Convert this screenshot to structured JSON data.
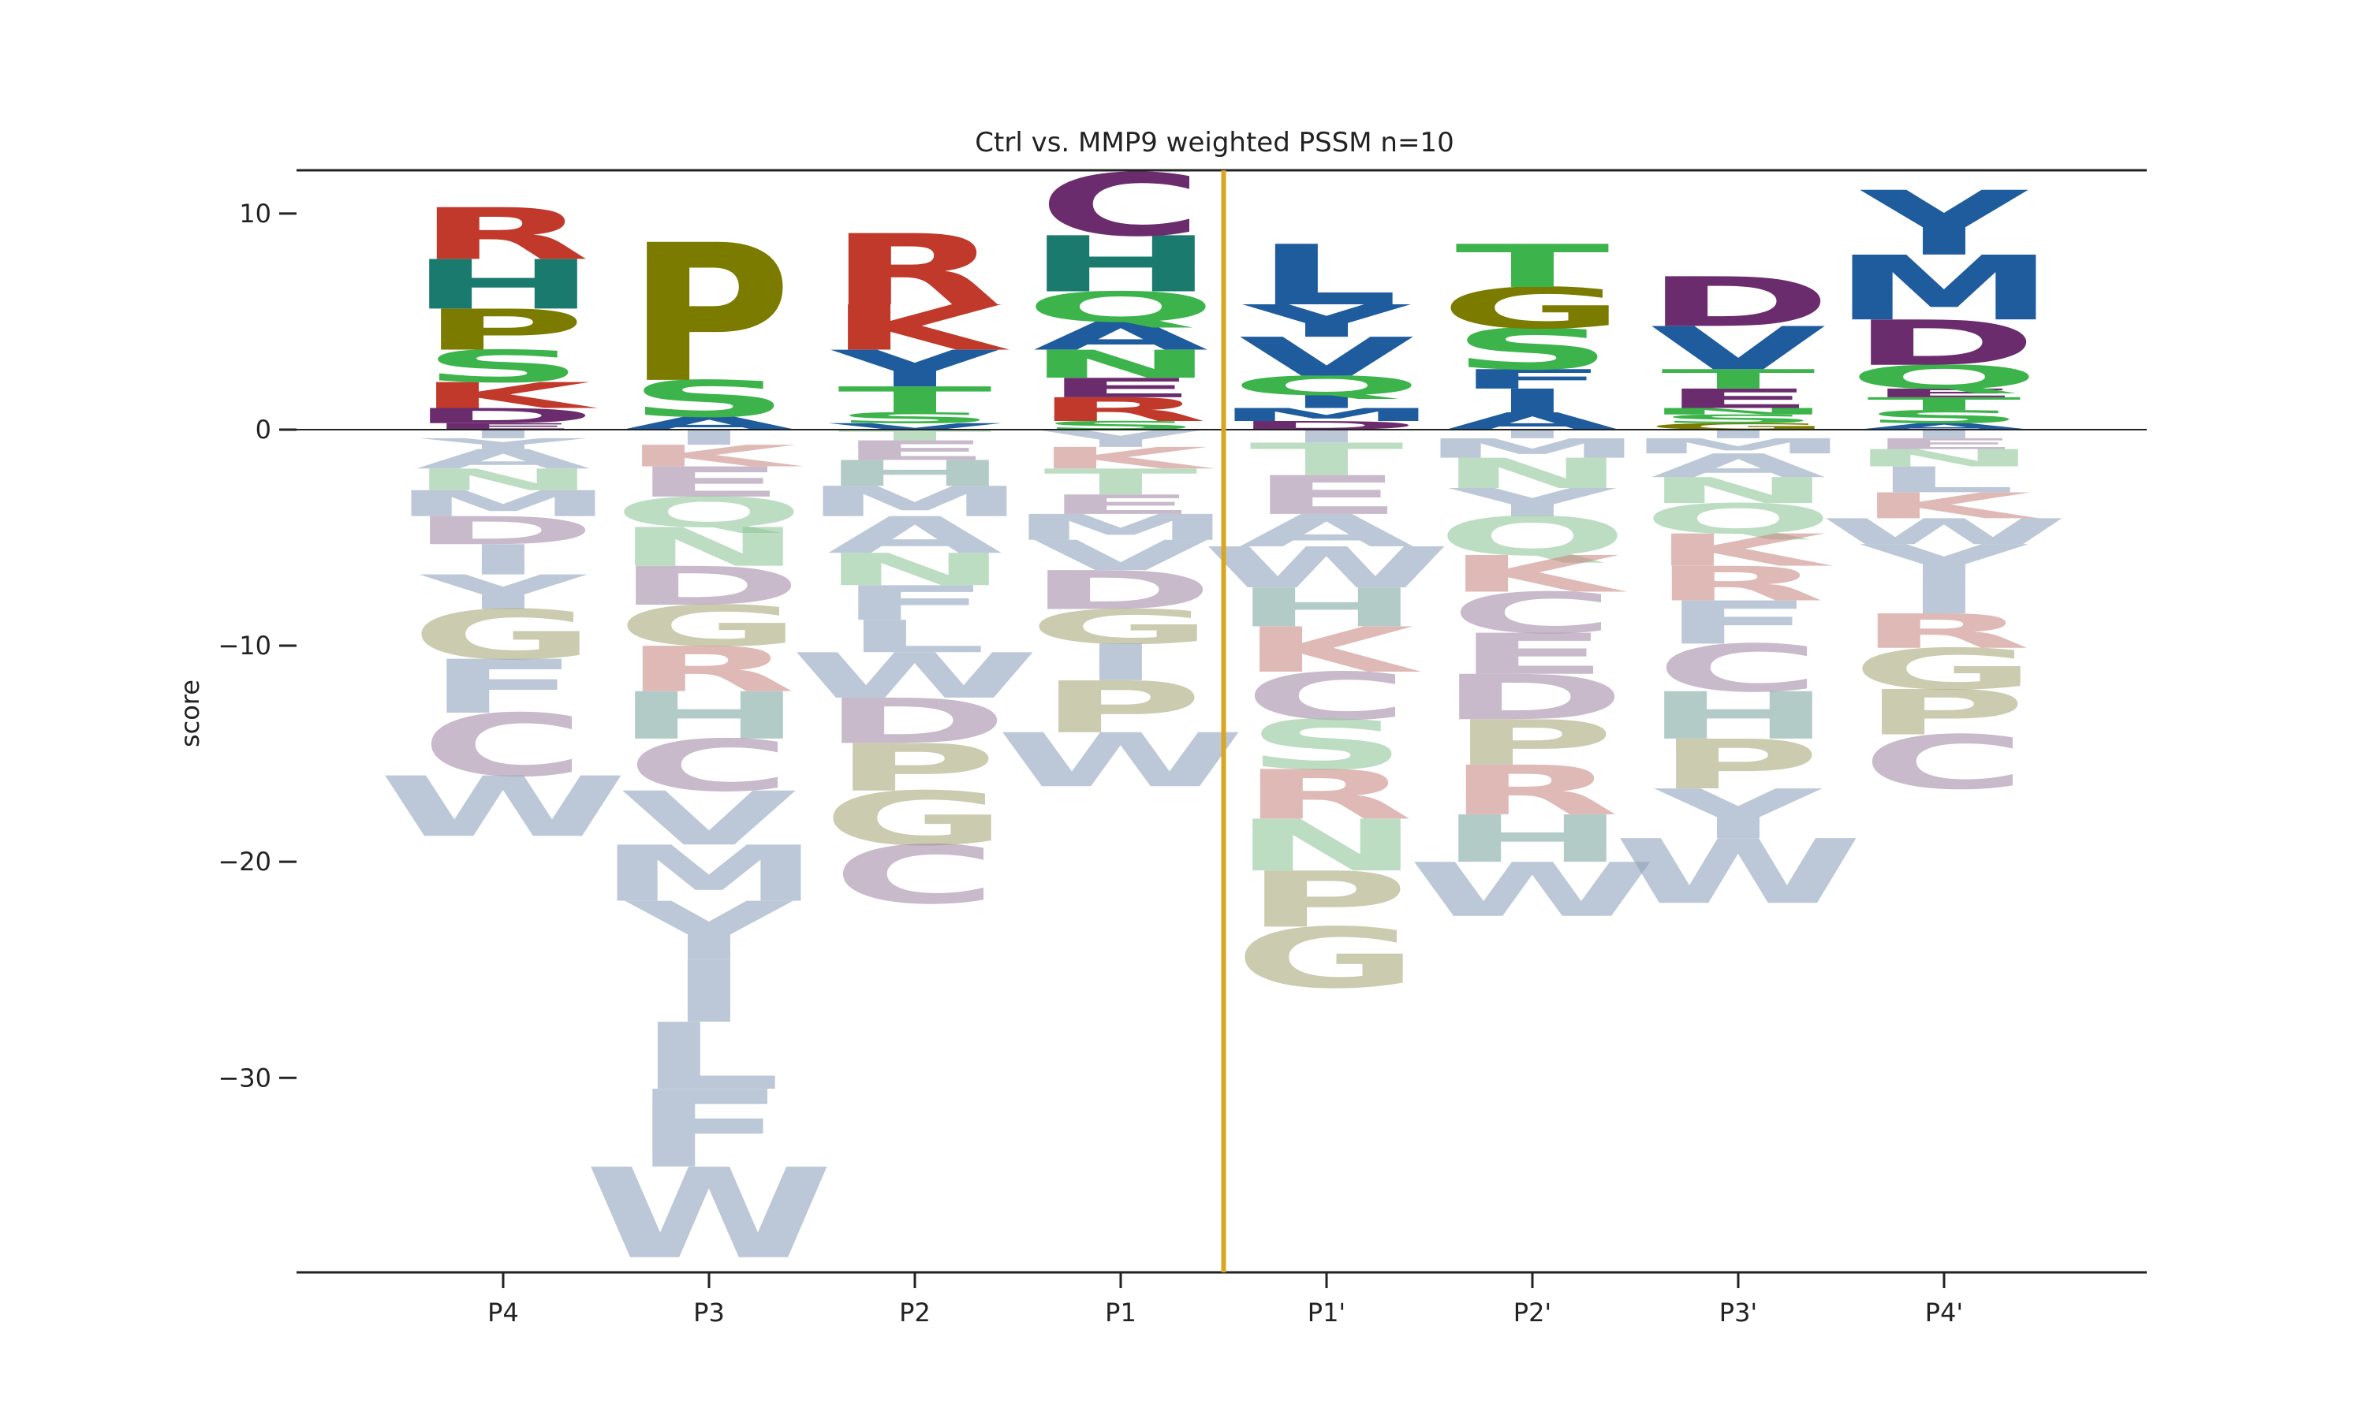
{
  "chart_data": {
    "type": "sequence-logo",
    "title": "Ctrl vs. MMP9 weighted PSSM n=10",
    "xlabel": "",
    "ylabel": "score",
    "ylim": [
      -39,
      12
    ],
    "yticks": [
      10,
      0,
      -10,
      -20,
      -30
    ],
    "ytick_labels": [
      "10",
      "0",
      "−10",
      "−20",
      "−30"
    ],
    "positions": [
      "P4",
      "P3",
      "P2",
      "P1",
      "P1'",
      "P2'",
      "P3'",
      "P4'"
    ],
    "cleavage_site_between": [
      "P1",
      "P1'"
    ],
    "colors": {
      "cleavage_line": "#DAA520",
      "R": "#C0392B",
      "K": "#C0392B",
      "H": "#1A7A6E",
      "C": "#6B2C6E",
      "D": "#6B2C6E",
      "E": "#6B2C6E",
      "P": "#7B7B00",
      "G": "#7B7B00",
      "S": "#3CB44B",
      "T": "#3CB44B",
      "Q": "#3CB44B",
      "N": "#3CB44B",
      "Y": "#1F5C9E",
      "V": "#1F5C9E",
      "L": "#1F5C9E",
      "M": "#1F5C9E",
      "F": "#1F5C9E",
      "W": "#1F5C9E",
      "I": "#1F5C9E",
      "A": "#1F5C9E"
    },
    "stacks": [
      {
        "position": "P4",
        "positive": [
          {
            "letter": "E",
            "value": 0.3
          },
          {
            "letter": "D",
            "value": 0.7
          },
          {
            "letter": "K",
            "value": 1.2
          },
          {
            "letter": "S",
            "value": 1.5
          },
          {
            "letter": "P",
            "value": 1.9
          },
          {
            "letter": "H",
            "value": 2.3
          },
          {
            "letter": "R",
            "value": 2.4
          }
        ],
        "negative": [
          {
            "letter": "I",
            "value": -0.4
          },
          {
            "letter": "Y",
            "value": -0.5
          },
          {
            "letter": "A",
            "value": -0.9
          },
          {
            "letter": "N",
            "value": -1.0
          },
          {
            "letter": "M",
            "value": -1.2
          },
          {
            "letter": "D",
            "value": -1.3
          },
          {
            "letter": "I",
            "value": -1.4
          },
          {
            "letter": "Y",
            "value": -1.6
          },
          {
            "letter": "G",
            "value": -2.3
          },
          {
            "letter": "F",
            "value": -2.5
          },
          {
            "letter": "C",
            "value": -2.9
          },
          {
            "letter": "W",
            "value": -2.8
          }
        ]
      },
      {
        "position": "P3",
        "positive": [
          {
            "letter": "A",
            "value": 0.6
          },
          {
            "letter": "S",
            "value": 1.7
          },
          {
            "letter": "P",
            "value": 6.4
          }
        ],
        "negative": [
          {
            "letter": "I",
            "value": -0.7
          },
          {
            "letter": "K",
            "value": -1.0
          },
          {
            "letter": "E",
            "value": -1.4
          },
          {
            "letter": "Q",
            "value": -1.4
          },
          {
            "letter": "N",
            "value": -1.8
          },
          {
            "letter": "D",
            "value": -1.8
          },
          {
            "letter": "G",
            "value": -1.9
          },
          {
            "letter": "R",
            "value": -2.1
          },
          {
            "letter": "H",
            "value": -2.2
          },
          {
            "letter": "C",
            "value": -2.4
          },
          {
            "letter": "V",
            "value": -2.5
          },
          {
            "letter": "M",
            "value": -2.6
          },
          {
            "letter": "Y",
            "value": -2.7
          },
          {
            "letter": "I",
            "value": -2.9
          },
          {
            "letter": "L",
            "value": -3.1
          },
          {
            "letter": "F",
            "value": -3.6
          },
          {
            "letter": "W",
            "value": -4.2
          }
        ]
      },
      {
        "position": "P2",
        "positive": [
          {
            "letter": "V",
            "value": 0.3
          },
          {
            "letter": "S",
            "value": 0.5
          },
          {
            "letter": "T",
            "value": 1.2
          },
          {
            "letter": "Y",
            "value": 1.7
          },
          {
            "letter": "K",
            "value": 2.1
          },
          {
            "letter": "R",
            "value": 3.3
          }
        ],
        "negative": [
          {
            "letter": "T",
            "value": -0.5
          },
          {
            "letter": "E",
            "value": -0.9
          },
          {
            "letter": "H",
            "value": -1.2
          },
          {
            "letter": "M",
            "value": -1.4
          },
          {
            "letter": "A",
            "value": -1.7
          },
          {
            "letter": "N",
            "value": -1.5
          },
          {
            "letter": "F",
            "value": -1.6
          },
          {
            "letter": "L",
            "value": -1.5
          },
          {
            "letter": "W",
            "value": -2.1
          },
          {
            "letter": "D",
            "value": -2.1
          },
          {
            "letter": "P",
            "value": -2.2
          },
          {
            "letter": "G",
            "value": -2.5
          },
          {
            "letter": "C",
            "value": -2.7
          }
        ]
      },
      {
        "position": "P1",
        "positive": [
          {
            "letter": "S",
            "value": 0.4
          },
          {
            "letter": "R",
            "value": 1.1
          },
          {
            "letter": "E",
            "value": 0.9
          },
          {
            "letter": "N",
            "value": 1.3
          },
          {
            "letter": "A",
            "value": 1.3
          },
          {
            "letter": "Q",
            "value": 1.4
          },
          {
            "letter": "H",
            "value": 2.6
          },
          {
            "letter": "C",
            "value": 2.9
          }
        ],
        "negative": [
          {
            "letter": "Y",
            "value": -0.8
          },
          {
            "letter": "K",
            "value": -1.0
          },
          {
            "letter": "T",
            "value": -1.2
          },
          {
            "letter": "E",
            "value": -0.9
          },
          {
            "letter": "M",
            "value": -1.2
          },
          {
            "letter": "V",
            "value": -1.4
          },
          {
            "letter": "D",
            "value": -1.8
          },
          {
            "letter": "G",
            "value": -1.6
          },
          {
            "letter": "I",
            "value": -1.7
          },
          {
            "letter": "P",
            "value": -2.4
          },
          {
            "letter": "W",
            "value": -2.5
          }
        ]
      },
      {
        "position": "P1'",
        "positive": [
          {
            "letter": "D",
            "value": 0.4
          },
          {
            "letter": "M",
            "value": 0.6
          },
          {
            "letter": "I",
            "value": 0.6
          },
          {
            "letter": "Q",
            "value": 0.9
          },
          {
            "letter": "V",
            "value": 1.8
          },
          {
            "letter": "Y",
            "value": 1.5
          },
          {
            "letter": "L",
            "value": 2.8
          }
        ],
        "negative": [
          {
            "letter": "I",
            "value": -0.6
          },
          {
            "letter": "T",
            "value": -1.5
          },
          {
            "letter": "E",
            "value": -1.8
          },
          {
            "letter": "A",
            "value": -1.5
          },
          {
            "letter": "W",
            "value": -1.9
          },
          {
            "letter": "H",
            "value": -1.8
          },
          {
            "letter": "K",
            "value": -2.1
          },
          {
            "letter": "C",
            "value": -2.2
          },
          {
            "letter": "S",
            "value": -2.3
          },
          {
            "letter": "R",
            "value": -2.3
          },
          {
            "letter": "N",
            "value": -2.4
          },
          {
            "letter": "P",
            "value": -2.6
          },
          {
            "letter": "G",
            "value": -2.8
          }
        ]
      },
      {
        "position": "P2'",
        "positive": [
          {
            "letter": "A",
            "value": 0.8
          },
          {
            "letter": "I",
            "value": 1.1
          },
          {
            "letter": "F",
            "value": 0.9
          },
          {
            "letter": "S",
            "value": 1.9
          },
          {
            "letter": "G",
            "value": 1.9
          },
          {
            "letter": "T",
            "value": 2.0
          }
        ],
        "negative": [
          {
            "letter": "I",
            "value": -0.4
          },
          {
            "letter": "M",
            "value": -0.9
          },
          {
            "letter": "N",
            "value": -1.4
          },
          {
            "letter": "Y",
            "value": -1.3
          },
          {
            "letter": "Q",
            "value": -1.8
          },
          {
            "letter": "K",
            "value": -1.7
          },
          {
            "letter": "C",
            "value": -1.9
          },
          {
            "letter": "E",
            "value": -1.9
          },
          {
            "letter": "D",
            "value": -2.1
          },
          {
            "letter": "P",
            "value": -2.1
          },
          {
            "letter": "R",
            "value": -2.3
          },
          {
            "letter": "H",
            "value": -2.2
          },
          {
            "letter": "W",
            "value": -2.5
          }
        ]
      },
      {
        "position": "P3'",
        "positive": [
          {
            "letter": "G",
            "value": 0.3
          },
          {
            "letter": "S",
            "value": 0.4
          },
          {
            "letter": "N",
            "value": 0.3
          },
          {
            "letter": "E",
            "value": 0.9
          },
          {
            "letter": "T",
            "value": 0.9
          },
          {
            "letter": "V",
            "value": 2.0
          },
          {
            "letter": "D",
            "value": 2.3
          }
        ],
        "negative": [
          {
            "letter": "I",
            "value": -0.4
          },
          {
            "letter": "M",
            "value": -0.7
          },
          {
            "letter": "A",
            "value": -1.1
          },
          {
            "letter": "N",
            "value": -1.2
          },
          {
            "letter": "Q",
            "value": -1.4
          },
          {
            "letter": "K",
            "value": -1.5
          },
          {
            "letter": "R",
            "value": -1.6
          },
          {
            "letter": "F",
            "value": -2.0
          },
          {
            "letter": "C",
            "value": -2.2
          },
          {
            "letter": "H",
            "value": -2.2
          },
          {
            "letter": "P",
            "value": -2.3
          },
          {
            "letter": "Y",
            "value": -2.3
          },
          {
            "letter": "W",
            "value": -3.0
          }
        ]
      },
      {
        "position": "P4'",
        "positive": [
          {
            "letter": "A",
            "value": 0.3
          },
          {
            "letter": "S",
            "value": 0.6
          },
          {
            "letter": "T",
            "value": 0.6
          },
          {
            "letter": "E",
            "value": 0.4
          },
          {
            "letter": "Q",
            "value": 1.1
          },
          {
            "letter": "D",
            "value": 2.1
          },
          {
            "letter": "M",
            "value": 3.0
          },
          {
            "letter": "Y",
            "value": 3.0
          }
        ],
        "negative": [
          {
            "letter": "I",
            "value": -0.4
          },
          {
            "letter": "E",
            "value": -0.5
          },
          {
            "letter": "N",
            "value": -0.8
          },
          {
            "letter": "L",
            "value": -1.2
          },
          {
            "letter": "K",
            "value": -1.2
          },
          {
            "letter": "W",
            "value": -1.2
          },
          {
            "letter": "Y",
            "value": -1.6
          },
          {
            "letter": "I",
            "value": -1.6
          },
          {
            "letter": "R",
            "value": -1.6
          },
          {
            "letter": "G",
            "value": -1.9
          },
          {
            "letter": "P",
            "value": -2.1
          },
          {
            "letter": "C",
            "value": -2.5
          }
        ]
      }
    ]
  }
}
